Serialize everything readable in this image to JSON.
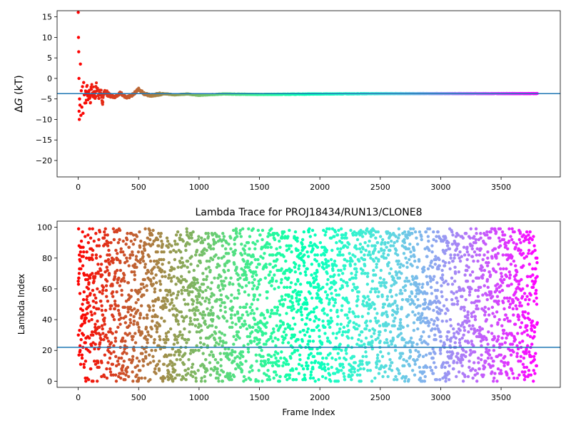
{
  "chart_data": [
    {
      "type": "scatter",
      "title": "",
      "xlabel": "",
      "ylabel_prefix": "Δ",
      "ylabel_symbol": "G",
      "ylabel_suffix": " (kT)",
      "xlim": [
        -175,
        3990
      ],
      "ylim": [
        -24,
        16.5
      ],
      "xticks": [
        0,
        500,
        1000,
        1500,
        2000,
        2500,
        3000,
        3500
      ],
      "yticks": [
        15,
        10,
        5,
        0,
        -5,
        -10,
        -15,
        -20
      ],
      "hline": -3.7,
      "n_frames": 3800,
      "colormap": "rainbow",
      "series_points_note": "",
      "points": [
        [
          0,
          16.1
        ],
        [
          2,
          10
        ],
        [
          4,
          6.5
        ],
        [
          6,
          0
        ],
        [
          7,
          -8
        ],
        [
          9,
          -10
        ],
        [
          11,
          -5
        ],
        [
          14,
          -6.5
        ],
        [
          18,
          3.5
        ],
        [
          22,
          -9
        ],
        [
          25,
          -3
        ],
        [
          30,
          -7
        ],
        [
          35,
          -2
        ],
        [
          40,
          -8.5
        ],
        [
          45,
          -1
        ],
        [
          50,
          -4
        ],
        [
          55,
          -6
        ],
        [
          60,
          -3
        ],
        [
          65,
          -5
        ],
        [
          70,
          -2
        ],
        [
          80,
          -4.5
        ],
        [
          90,
          -3
        ],
        [
          100,
          -5
        ],
        [
          110,
          -2.5
        ],
        [
          120,
          -4
        ],
        [
          130,
          -3
        ],
        [
          140,
          -4.5
        ],
        [
          150,
          -2
        ],
        [
          170,
          -4
        ],
        [
          190,
          -3.5
        ],
        [
          200,
          -6
        ],
        [
          220,
          -3
        ],
        [
          250,
          -4
        ],
        [
          300,
          -4.5
        ],
        [
          350,
          -3.5
        ],
        [
          400,
          -4.8
        ],
        [
          450,
          -4
        ],
        [
          500,
          -2.6
        ],
        [
          550,
          -3.8
        ],
        [
          600,
          -4.2
        ],
        [
          700,
          -3.7
        ],
        [
          800,
          -4
        ],
        [
          900,
          -3.8
        ],
        [
          1000,
          -4.1
        ],
        [
          1200,
          -3.8
        ],
        [
          1500,
          -3.9
        ],
        [
          2000,
          -3.8
        ],
        [
          2500,
          -3.7
        ],
        [
          3000,
          -3.7
        ],
        [
          3500,
          -3.7
        ],
        [
          3800,
          -3.7
        ]
      ]
    },
    {
      "type": "scatter",
      "title": "Lambda Trace for PROJ18434/RUN13/CLONE8",
      "xlabel": "Frame Index",
      "ylabel": "Lambda Index",
      "xlim": [
        -175,
        3990
      ],
      "ylim": [
        -4,
        104
      ],
      "xticks": [
        0,
        500,
        1000,
        1500,
        2000,
        2500,
        3000,
        3500
      ],
      "yticks": [
        0,
        20,
        40,
        60,
        80,
        100
      ],
      "hline": 22,
      "n_frames": 3800,
      "colormap": "rainbow",
      "lambda_range": [
        0,
        99
      ]
    }
  ]
}
